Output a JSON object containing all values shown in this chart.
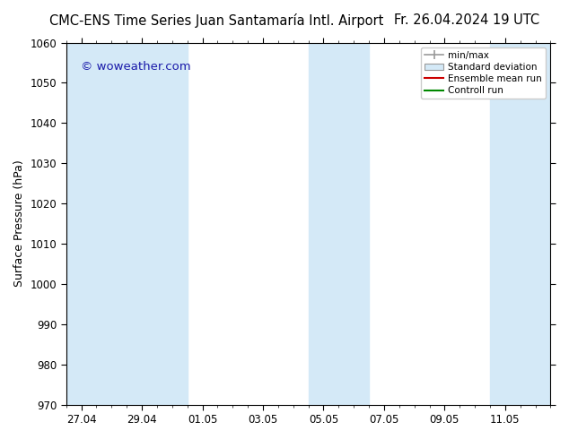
{
  "title_left": "CMC-ENS Time Series Juan Santamaría Intl. Airport",
  "title_right": "Fr. 26.04.2024 19 UTC",
  "ylabel": "Surface Pressure (hPa)",
  "watermark": "© woweather.com",
  "watermark_color": "#1a1aaa",
  "ylim": [
    970,
    1060
  ],
  "yticks": [
    970,
    980,
    990,
    1000,
    1010,
    1020,
    1030,
    1040,
    1050,
    1060
  ],
  "x_tick_labels": [
    "27.04",
    "29.04",
    "01.05",
    "03.05",
    "05.05",
    "07.05",
    "09.05",
    "11.05"
  ],
  "x_tick_positions": [
    0,
    2,
    4,
    6,
    8,
    10,
    12,
    14
  ],
  "xlim": [
    -0.5,
    15.5
  ],
  "background_color": "#ffffff",
  "plot_bg_color": "#ffffff",
  "shaded_bands": [
    {
      "x_start": -0.5,
      "x_end": 1.5,
      "color": "#d4e9f7"
    },
    {
      "x_start": 1.5,
      "x_end": 3.5,
      "color": "#d4e9f7"
    },
    {
      "x_start": 7.5,
      "x_end": 9.5,
      "color": "#d4e9f7"
    },
    {
      "x_start": 13.5,
      "x_end": 15.5,
      "color": "#d4e9f7"
    }
  ],
  "legend_labels": [
    "min/max",
    "Standard deviation",
    "Ensemble mean run",
    "Controll run"
  ],
  "legend_colors": [
    "#999999",
    "#aaaaaa",
    "#cc0000",
    "#008800"
  ],
  "title_fontsize": 10.5,
  "axis_label_fontsize": 9,
  "tick_fontsize": 8.5
}
